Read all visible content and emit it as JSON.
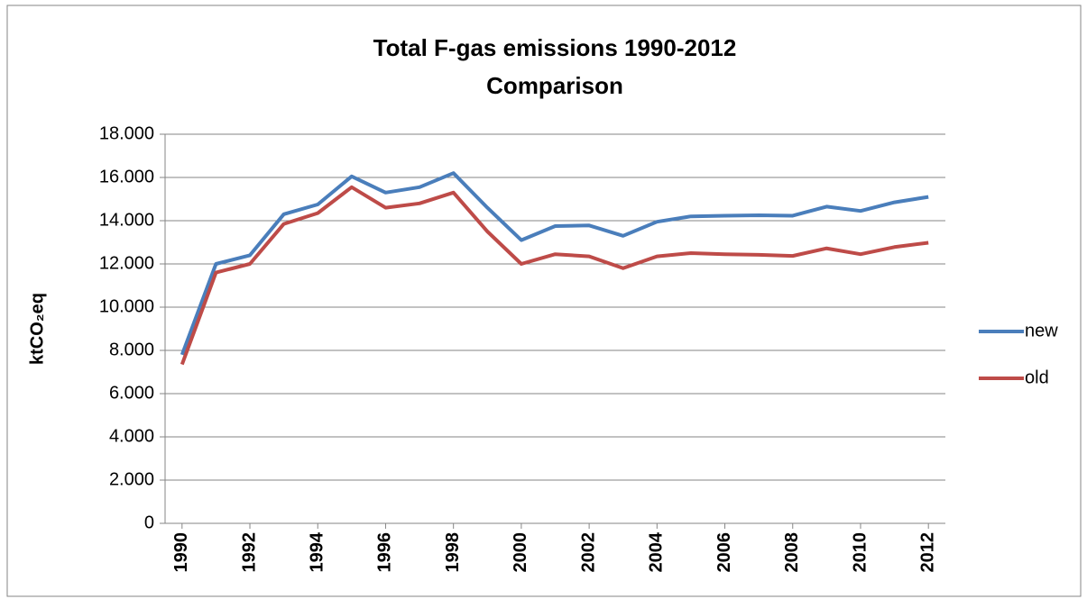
{
  "chart_data": {
    "type": "line",
    "title": [
      "Total F-gas emissions 1990-2012",
      "Comparison"
    ],
    "y_label": "ktCO₂eq",
    "x": [
      1990,
      1991,
      1992,
      1993,
      1994,
      1995,
      1996,
      1997,
      1998,
      1999,
      2000,
      2001,
      2002,
      2003,
      2004,
      2005,
      2006,
      2007,
      2008,
      2009,
      2010,
      2011,
      2012
    ],
    "xlim": [
      1989.5,
      2012.5
    ],
    "xticks": [
      1990,
      1992,
      1994,
      1996,
      1998,
      2000,
      2002,
      2004,
      2006,
      2008,
      2010,
      2012
    ],
    "ylim": [
      0,
      18000
    ],
    "yticks": [
      0,
      {
        "value": 2000,
        "label": "2.000"
      },
      {
        "value": 4000,
        "label": "4.000"
      },
      {
        "value": 6000,
        "label": "6.000"
      },
      {
        "value": 8000,
        "label": "8.000"
      },
      {
        "value": 10000,
        "label": "10.000"
      },
      {
        "value": 12000,
        "label": "12.000"
      },
      {
        "value": 14000,
        "label": "14.000"
      },
      {
        "value": 16000,
        "label": "16.000"
      },
      {
        "value": 18000,
        "label": "18.000"
      }
    ],
    "grid": true,
    "legend": "right",
    "series": [
      {
        "name": "new",
        "color": "#4a7ebb",
        "values": [
          7800,
          12000,
          12400,
          14300,
          14750,
          16050,
          15300,
          15550,
          16200,
          14600,
          13100,
          13750,
          13780,
          13300,
          13950,
          14200,
          14230,
          14250,
          14230,
          14650,
          14450,
          14850,
          15100
        ]
      },
      {
        "name": "old",
        "color": "#be4b48",
        "values": [
          7350,
          11600,
          12000,
          13850,
          14350,
          15550,
          14600,
          14800,
          15300,
          13500,
          12000,
          12450,
          12350,
          11800,
          12350,
          12500,
          12450,
          12420,
          12370,
          12720,
          12450,
          12780,
          12980
        ]
      }
    ]
  }
}
